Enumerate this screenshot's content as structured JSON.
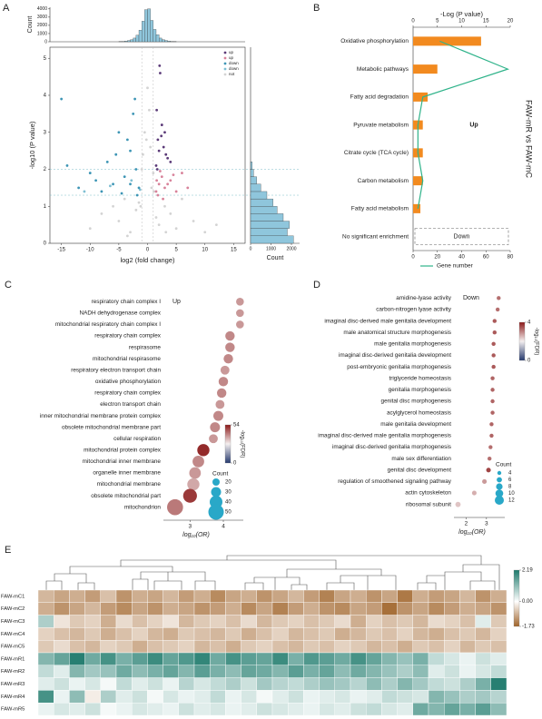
{
  "chart_data": [
    {
      "type": "histogram",
      "label": "A",
      "orientation": "vertical",
      "ylabel": "Count",
      "color": "#8fc6dc",
      "bins": [
        -5,
        -4.5,
        -4,
        -3.5,
        -3,
        -2.5,
        -2,
        -1.5,
        -1,
        -0.5,
        0,
        0.5,
        1,
        1.5,
        2,
        2.5,
        3,
        3.5,
        4,
        4.5,
        5
      ],
      "counts": [
        20,
        40,
        80,
        150,
        250,
        450,
        800,
        1400,
        2500,
        3900,
        4000,
        2600,
        1500,
        850,
        450,
        250,
        150,
        80,
        40,
        20
      ],
      "xlim": [
        -17,
        17
      ],
      "ylim": [
        0,
        4200
      ],
      "yticks": [
        0,
        1000,
        2000,
        3000,
        4000
      ]
    },
    {
      "type": "scatter",
      "xlabel": "log2 (fold change)",
      "ylabel": "-log10 (P value)",
      "xlim": [
        -17,
        17
      ],
      "ylim": [
        0,
        5.3
      ],
      "xticks": [
        -15,
        -10,
        -5,
        0,
        5,
        10,
        15
      ],
      "yticks": [
        0,
        1,
        2,
        3,
        4,
        5
      ],
      "hlines": [
        1.3,
        2
      ],
      "vlines": [
        -1,
        1
      ],
      "legend": "upper right",
      "series": [
        {
          "name": "up",
          "color": "#5b3a78",
          "x": [
            1.5,
            2,
            2.5,
            3,
            1.8,
            2.2,
            3.5,
            1.6,
            2.8,
            4,
            2.1,
            1.7,
            2.4,
            3.2
          ],
          "values": [
            2.1,
            2.5,
            3.2,
            3.0,
            2.8,
            4.6,
            2.3,
            3.6,
            2.6,
            2.2,
            4.8,
            2.0,
            2.9,
            2.4
          ]
        },
        {
          "name": "up",
          "color": "#d8829a",
          "x": [
            1.5,
            2,
            2.5,
            3,
            4,
            5,
            6,
            1.8,
            2.2,
            3.5,
            7,
            2.7,
            1.6,
            4.5
          ],
          "values": [
            1.4,
            1.6,
            1.8,
            1.5,
            1.7,
            1.4,
            1.9,
            1.3,
            1.95,
            1.6,
            1.5,
            1.2,
            1.7,
            1.85
          ]
        },
        {
          "name": "down",
          "color": "#3d95b5",
          "x": [
            -1.5,
            -2,
            -3,
            -4,
            -5,
            -6,
            -7,
            -8,
            -10,
            -12,
            -14,
            -2.5,
            -3.5,
            -1.8,
            -5.5,
            -9,
            -2.2,
            -4.5,
            -15,
            -3
          ],
          "values": [
            1.5,
            2.0,
            2.5,
            1.8,
            3.0,
            1.6,
            2.2,
            1.4,
            1.9,
            1.5,
            2.1,
            3.5,
            2.8,
            1.3,
            2.4,
            1.7,
            3.9,
            1.35,
            3.9,
            1.6
          ]
        },
        {
          "name": "down",
          "color": "#7fbfd3",
          "x": [
            -1.3,
            -2.8,
            -6.5,
            -11
          ],
          "values": [
            1.45,
            1.7,
            1.55,
            1.4
          ]
        },
        {
          "name": "not",
          "color": "#d3d3d3",
          "x": [
            -10,
            -8,
            -6,
            -5,
            -4,
            -3,
            -2,
            -1.5,
            -1,
            -0.5,
            0,
            0.5,
            1,
            1.5,
            2,
            3,
            4,
            5,
            6,
            8,
            10,
            -0.8,
            0.3,
            -0.2,
            0.7,
            -1.2,
            1.1,
            -3.5,
            3.2,
            12
          ],
          "values": [
            0.4,
            0.8,
            1.0,
            0.6,
            1.2,
            0.3,
            0.9,
            1.1,
            2.0,
            3.0,
            4.2,
            2.6,
            1.9,
            0.7,
            0.5,
            1.0,
            0.8,
            0.4,
            1.2,
            0.6,
            0.3,
            2.4,
            3.6,
            2.8,
            1.5,
            1.0,
            1.4,
            0.2,
            0.3,
            0.5
          ]
        }
      ]
    },
    {
      "type": "histogram",
      "orientation": "horizontal",
      "xlabel": "Count",
      "color": "#8fc6dc",
      "bins": [
        0,
        0.2,
        0.4,
        0.6,
        0.8,
        1.0,
        1.2,
        1.4,
        1.6,
        1.8,
        2.0,
        2.2
      ],
      "counts": [
        2100,
        1800,
        1900,
        1600,
        1300,
        1100,
        800,
        500,
        300,
        150,
        80
      ],
      "ylim": [
        0,
        5.3
      ],
      "xlim": [
        0,
        2400
      ],
      "xticks": [
        0,
        1000,
        2000
      ]
    },
    {
      "type": "bar",
      "label": "B",
      "orientation": "horizontal",
      "xlabel": "-Log (P value)",
      "color": "#f28a1f",
      "categories": [
        "Oxidative phosphorylation",
        "Metabolic pathways",
        "Fatty acid degradation",
        "Pyruvate metabolism",
        "Citrate cycle (TCA cycle)",
        "Carbon metabolism",
        "Fatty acid metabolism",
        "No significant enrichment"
      ],
      "category_colors": [
        "#222",
        "#222",
        "#222",
        "#222",
        "#222",
        "#222",
        "#222",
        "#2a5a9a"
      ],
      "values": [
        14,
        5,
        3,
        2,
        2,
        2,
        1.5,
        null
      ],
      "xlim": [
        0,
        20
      ],
      "xticks": [
        0,
        5,
        10,
        15,
        20
      ],
      "line": {
        "name": "Gene number",
        "color": "#2fb38a",
        "axis": "x2",
        "values": [
          22,
          78,
          8,
          4,
          4,
          8,
          4,
          null
        ]
      },
      "x2lim": [
        0,
        80
      ],
      "x2ticks": [
        0,
        20,
        40,
        60,
        80
      ],
      "annotations": [
        {
          "text": "Up",
          "color": "#f28a1f"
        },
        {
          "text": "Down",
          "color": "#2a5a9a"
        }
      ],
      "side_label": "FAW-mR vs FAW-mC"
    },
    {
      "type": "dot",
      "label": "C",
      "annotation": "Up",
      "xlabel": "log₁₀(OR)",
      "categories": [
        "respiratory chain complex I",
        "NADH dehydrogenase complex",
        "mitochondrial respiratory chain complex I",
        "respiratory chain complex",
        "respirasome",
        "mitochondrial respirasome",
        "respiratory electron transport chain",
        "oxidative phosphorylation",
        "respiratory chain complex",
        "electron transport chain",
        "inner mitochondrial membrane protein complex",
        "obsolete mitochondrial membrane part",
        "cellular respiration",
        "mitochondrial protein complex",
        "mitochondrial inner membrane",
        "organelle inner membrane",
        "mitochondrial membrane",
        "obsolete mitochondrial part",
        "mitochondrion"
      ],
      "values": [
        4.5,
        4.5,
        4.5,
        4.2,
        4.2,
        4.15,
        4.05,
        4.0,
        3.95,
        3.9,
        3.85,
        3.75,
        3.7,
        3.4,
        3.25,
        3.15,
        3.1,
        3.0,
        2.55
      ],
      "counts": [
        22,
        22,
        22,
        28,
        28,
        28,
        26,
        28,
        28,
        26,
        30,
        30,
        26,
        38,
        36,
        36,
        38,
        44,
        52
      ],
      "fdr": [
        38,
        38,
        38,
        40,
        40,
        40,
        38,
        40,
        40,
        38,
        40,
        40,
        38,
        52,
        40,
        38,
        36,
        50,
        42
      ],
      "xlim": [
        2.2,
        4.6
      ],
      "xticks": [
        3,
        4
      ],
      "colorbar": {
        "label": "-log₁₀(FDR)",
        "lim": [
          0,
          54
        ],
        "ticks": [
          0,
          54
        ],
        "colors": [
          "#263a6e",
          "#f4efef",
          "#8b1a1a"
        ]
      },
      "size_legend": {
        "title": "Count",
        "values": [
          20,
          30,
          40,
          50
        ],
        "color": "#29a8c8",
        "radii": [
          4,
          8.5
        ]
      }
    },
    {
      "type": "dot",
      "label": "D",
      "annotation": "Down",
      "xlabel": "log₁₀(OR)",
      "categories": [
        "amidine-lyase activity",
        "carbon-nitrogen lyase activity",
        "imaginal disc-derived male genitalia development",
        "male anatomical structure morphogenesis",
        "male genitalia morphogenesis",
        "imaginal disc-derived genitalia development",
        "post-embryonic genitalia morphogenesis",
        "triglyceride homeostasis",
        "genitalia morphogenesis",
        "genital disc morphogenesis",
        "acylglycerol homeostasis",
        "male genitalia development",
        "imaginal disc-derived male genitalia morphogenesis",
        "imaginal disc-derived genitalia morphogenesis",
        "male sex differentiation",
        "genital disc development",
        "regulation of smoothened signaling pathway",
        "actin cytoskeleton",
        "ribosomal subunit"
      ],
      "values": [
        3.6,
        3.55,
        3.4,
        3.4,
        3.35,
        3.35,
        3.35,
        3.3,
        3.3,
        3.3,
        3.3,
        3.25,
        3.25,
        3.2,
        3.15,
        3.1,
        2.9,
        2.4,
        1.6
      ],
      "counts": [
        4,
        4,
        4,
        4,
        4,
        4,
        4,
        4,
        4,
        4,
        4,
        4,
        4,
        4,
        4,
        5,
        5,
        5,
        6
      ],
      "fdr": [
        3.2,
        3.2,
        3.4,
        3.4,
        3.4,
        3.4,
        3.4,
        3.3,
        3.3,
        3.3,
        3.3,
        3.3,
        3.3,
        3.2,
        3.2,
        3.6,
        2.8,
        2.6,
        2.4
      ],
      "xlim": [
        1.4,
        3.9
      ],
      "xticks": [
        2,
        3
      ],
      "colorbar": {
        "label": "-log₁₀(FDR)",
        "lim": [
          0,
          4
        ],
        "ticks": [
          0,
          4
        ],
        "colors": [
          "#263a6e",
          "#f4efef",
          "#8b1a1a"
        ]
      },
      "size_legend": {
        "title": "Count",
        "values": [
          4,
          6,
          8,
          10,
          12
        ],
        "color": "#29a8c8",
        "radii": [
          2.2,
          5
        ]
      }
    },
    {
      "type": "heatmap",
      "label": "E",
      "rows": [
        "FAW-mC1",
        "FAW-mC2",
        "FAW-mC3",
        "FAW-mC4",
        "FAW-mC5",
        "FAW-mR1",
        "FAW-mR2",
        "FAW-mR3",
        "FAW-mR4",
        "FAW-mR5"
      ],
      "values": [
        [
          -0.8,
          -1.0,
          -0.9,
          -1.1,
          -0.7,
          -1.2,
          -0.9,
          -1.0,
          -0.8,
          -1.1,
          -0.9,
          -1.3,
          -1.0,
          -0.9,
          -1.2,
          -1.0,
          -0.8,
          -1.1,
          -1.4,
          -1.0,
          -0.9,
          -1.2,
          -1.0,
          -1.5,
          -0.9,
          -1.1,
          -1.0,
          -0.8,
          -1.2,
          -0.9
        ],
        [
          -0.9,
          -1.2,
          -1.0,
          -0.8,
          -1.1,
          -1.3,
          -1.0,
          -1.2,
          -0.9,
          -1.0,
          -1.2,
          -1.1,
          -0.9,
          -1.3,
          -1.0,
          -1.4,
          -1.1,
          -0.9,
          -1.2,
          -1.3,
          -1.0,
          -1.1,
          -1.6,
          -1.2,
          -1.0,
          -1.3,
          -1.1,
          -0.9,
          -1.0,
          -1.2
        ],
        [
          0.8,
          -0.3,
          -0.6,
          -0.5,
          -0.9,
          -0.4,
          -0.7,
          -0.5,
          -0.3,
          -0.8,
          -0.6,
          -0.5,
          -0.7,
          -0.4,
          -0.8,
          -0.6,
          -0.5,
          -0.7,
          -0.6,
          -0.4,
          -0.9,
          -0.5,
          -0.7,
          -0.6,
          -0.8,
          -0.4,
          -0.5,
          -0.7,
          0.3,
          -0.6
        ],
        [
          -0.5,
          -0.7,
          -0.8,
          -0.6,
          -0.9,
          -0.7,
          -0.5,
          -0.8,
          -0.9,
          -0.6,
          -0.7,
          -0.8,
          -0.6,
          -0.9,
          -0.7,
          -0.5,
          -0.8,
          -0.7,
          -0.6,
          -0.9,
          -0.8,
          -0.6,
          -0.7,
          -0.5,
          -0.8,
          -0.9,
          -0.7,
          -0.6,
          -0.8,
          -0.5
        ],
        [
          -0.6,
          -0.4,
          -0.7,
          -0.8,
          -0.5,
          -0.6,
          -0.9,
          -0.7,
          -0.6,
          -0.5,
          -0.8,
          -0.7,
          -0.9,
          -0.6,
          -0.5,
          -0.7,
          -0.8,
          -0.6,
          -0.7,
          -0.5,
          -0.6,
          -0.8,
          -0.7,
          -0.9,
          -0.6,
          -0.7,
          -0.5,
          -0.8,
          -0.6,
          -0.7
        ],
        [
          1.2,
          1.5,
          2.1,
          1.4,
          1.8,
          1.3,
          1.6,
          1.9,
          1.5,
          1.7,
          2.0,
          1.4,
          1.8,
          1.6,
          1.5,
          1.9,
          1.3,
          1.7,
          1.6,
          1.4,
          1.8,
          1.5,
          1.2,
          1.0,
          1.3,
          0.6,
          0.4,
          0.2,
          0.5,
          0.3
        ],
        [
          0.6,
          0.3,
          1.2,
          0.9,
          1.0,
          1.4,
          1.1,
          1.3,
          1.5,
          1.2,
          1.6,
          1.3,
          1.1,
          1.5,
          1.4,
          1.2,
          1.6,
          1.3,
          1.5,
          1.1,
          1.4,
          1.2,
          1.0,
          0.8,
          1.1,
          0.3,
          0.5,
          0.2,
          0.4,
          0.6
        ],
        [
          0.3,
          0.5,
          0.2,
          0.4,
          0.1,
          0.6,
          0.3,
          0.5,
          0.2,
          0.7,
          0.4,
          0.6,
          0.8,
          0.5,
          0.9,
          0.7,
          0.6,
          0.8,
          1.0,
          0.9,
          0.7,
          1.1,
          0.8,
          1.2,
          0.9,
          0.6,
          0.5,
          0.8,
          1.3,
          2.1
        ],
        [
          1.8,
          0.2,
          1.1,
          -0.2,
          0.8,
          0.3,
          0.5,
          0.1,
          0.4,
          0.2,
          0.3,
          0.6,
          0.2,
          0.4,
          0.1,
          0.3,
          0.5,
          0.2,
          0.3,
          0.4,
          0.2,
          0.3,
          0.6,
          0.5,
          0.4,
          1.2,
          1.0,
          0.8,
          0.9,
          0.7
        ],
        [
          0.2,
          0.4,
          0.3,
          0.5,
          0.1,
          0.2,
          0.4,
          0.3,
          0.2,
          0.5,
          0.3,
          0.4,
          0.2,
          0.3,
          0.5,
          0.4,
          0.3,
          0.2,
          0.4,
          0.3,
          0.5,
          0.6,
          0.4,
          0.3,
          1.4,
          1.2,
          1.5,
          1.3,
          1.6,
          1.1
        ]
      ],
      "colorbar": {
        "lim": [
          -1.73,
          2.19
        ],
        "ticks": [
          2.19,
          {
            "value": 0,
            "label": "0.00"
          },
          -1.73
        ],
        "colors": [
          "#a0642a",
          "#ffffff",
          "#1e7a6c"
        ]
      }
    }
  ]
}
